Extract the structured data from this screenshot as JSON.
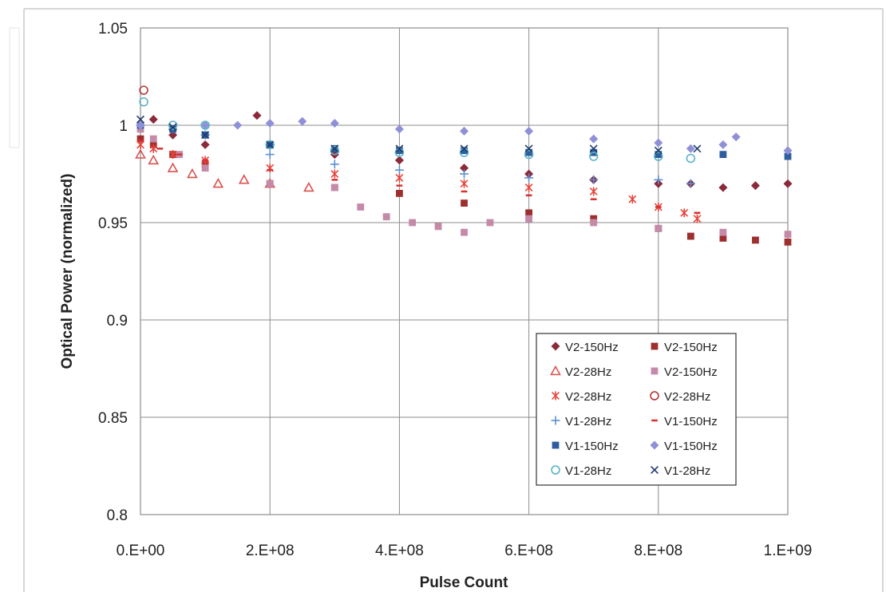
{
  "chart_data": {
    "type": "scatter",
    "xlabel": "Pulse Count",
    "ylabel": "Optical Power (normalized)",
    "xlim": [
      0,
      1000000000
    ],
    "ylim": [
      0.8,
      1.05
    ],
    "x_ticks": [
      0,
      200000000,
      400000000,
      600000000,
      800000000,
      1000000000
    ],
    "x_tick_labels": [
      "0.E+00",
      "2.E+08",
      "4.E+08",
      "6.E+08",
      "8.E+08",
      "1.E+09"
    ],
    "y_ticks": [
      0.8,
      0.85,
      0.9,
      0.95,
      1,
      1.05
    ],
    "y_tick_labels": [
      "0.8",
      "0.85",
      "0.9",
      "0.95",
      "1",
      "1.05"
    ],
    "grid": true,
    "legend_position": "bottom-right",
    "series": [
      {
        "name": "V2-150Hz",
        "marker": "diamond",
        "color": "#8b2a3a",
        "x": [
          0,
          20000000,
          50000000,
          100000000,
          180000000,
          300000000,
          400000000,
          500000000,
          600000000,
          700000000,
          800000000,
          850000000,
          900000000,
          950000000,
          1000000000
        ],
        "y": [
          1.0,
          1.003,
          0.995,
          0.99,
          1.005,
          0.985,
          0.982,
          0.978,
          0.975,
          0.972,
          0.97,
          0.97,
          0.968,
          0.969,
          0.97
        ]
      },
      {
        "name": "V2-150Hz",
        "marker": "square",
        "color": "#9e2f2f",
        "x": [
          0,
          20000000,
          50000000,
          100000000,
          200000000,
          300000000,
          400000000,
          500000000,
          600000000,
          700000000,
          800000000,
          850000000,
          900000000,
          950000000,
          1000000000
        ],
        "y": [
          0.993,
          0.99,
          0.985,
          0.98,
          0.97,
          0.968,
          0.965,
          0.96,
          0.955,
          0.952,
          0.947,
          0.943,
          0.942,
          0.941,
          0.94
        ]
      },
      {
        "name": "V2-28Hz",
        "marker": "triangle-open",
        "color": "#d9534f",
        "x": [
          0,
          20000000,
          50000000,
          80000000,
          120000000,
          160000000,
          200000000,
          260000000
        ],
        "y": [
          0.985,
          0.982,
          0.978,
          0.975,
          0.97,
          0.972,
          0.97,
          0.968
        ]
      },
      {
        "name": "V2-150Hz",
        "marker": "square",
        "color": "#c48aa8",
        "x": [
          0,
          20000000,
          60000000,
          100000000,
          200000000,
          300000000,
          340000000,
          380000000,
          420000000,
          460000000,
          500000000,
          540000000,
          600000000,
          700000000,
          800000000,
          900000000,
          1000000000
        ],
        "y": [
          0.998,
          0.993,
          0.985,
          0.978,
          0.97,
          0.968,
          0.958,
          0.953,
          0.95,
          0.948,
          0.945,
          0.95,
          0.952,
          0.95,
          0.947,
          0.945,
          0.944
        ]
      },
      {
        "name": "V2-28Hz",
        "marker": "asterisk",
        "color": "#e8433a",
        "x": [
          0,
          20000000,
          50000000,
          100000000,
          200000000,
          300000000,
          400000000,
          500000000,
          600000000,
          700000000,
          760000000,
          800000000,
          840000000,
          860000000
        ],
        "y": [
          0.99,
          0.988,
          0.985,
          0.982,
          0.978,
          0.975,
          0.973,
          0.97,
          0.968,
          0.966,
          0.962,
          0.958,
          0.955,
          0.952
        ]
      },
      {
        "name": "V2-28Hz",
        "marker": "circle-open",
        "color": "#b33a3a",
        "x": [
          5000000
        ],
        "y": [
          1.018
        ]
      },
      {
        "name": "V1-28Hz",
        "marker": "plus",
        "color": "#5b8fd1",
        "x": [
          0,
          50000000,
          100000000,
          200000000,
          300000000,
          400000000,
          500000000,
          600000000,
          700000000,
          800000000,
          850000000
        ],
        "y": [
          1.0,
          0.998,
          0.995,
          0.985,
          0.98,
          0.977,
          0.975,
          0.973,
          0.972,
          0.972,
          0.97
        ]
      },
      {
        "name": "V1-150Hz",
        "marker": "dash",
        "color": "#d93030",
        "x": [
          0,
          30000000,
          60000000,
          100000000,
          200000000,
          300000000,
          400000000,
          500000000,
          600000000,
          700000000,
          800000000,
          860000000
        ],
        "y": [
          0.992,
          0.988,
          0.985,
          0.982,
          0.977,
          0.972,
          0.969,
          0.966,
          0.964,
          0.962,
          0.958,
          0.955
        ]
      },
      {
        "name": "V1-150Hz",
        "marker": "square",
        "color": "#2e5e9e",
        "x": [
          0,
          50000000,
          100000000,
          200000000,
          300000000,
          400000000,
          500000000,
          600000000,
          700000000,
          800000000,
          900000000,
          1000000000
        ],
        "y": [
          1.0,
          0.998,
          0.995,
          0.99,
          0.988,
          0.987,
          0.987,
          0.986,
          0.986,
          0.985,
          0.985,
          0.984
        ]
      },
      {
        "name": "V1-150Hz",
        "marker": "diamond",
        "color": "#8f90d8",
        "x": [
          0,
          100000000,
          150000000,
          200000000,
          250000000,
          300000000,
          400000000,
          500000000,
          600000000,
          700000000,
          800000000,
          850000000,
          900000000,
          920000000,
          1000000000
        ],
        "y": [
          1.0,
          1.0,
          1.0,
          1.001,
          1.002,
          1.001,
          0.998,
          0.997,
          0.997,
          0.993,
          0.991,
          0.988,
          0.99,
          0.994,
          0.987
        ]
      },
      {
        "name": "V1-28Hz",
        "marker": "circle-open",
        "color": "#5bb4c8",
        "x": [
          5000000,
          50000000,
          100000000,
          200000000,
          300000000,
          400000000,
          500000000,
          600000000,
          700000000,
          800000000,
          850000000
        ],
        "y": [
          1.012,
          1.0,
          1.0,
          0.99,
          0.987,
          0.986,
          0.986,
          0.985,
          0.984,
          0.984,
          0.983
        ]
      },
      {
        "name": "V1-28Hz",
        "marker": "x",
        "color": "#1f3a6e",
        "x": [
          0,
          50000000,
          100000000,
          200000000,
          300000000,
          400000000,
          500000000,
          600000000,
          700000000,
          800000000,
          860000000
        ],
        "y": [
          1.003,
          0.999,
          0.995,
          0.99,
          0.988,
          0.988,
          0.988,
          0.988,
          0.988,
          0.987,
          0.988
        ]
      }
    ]
  }
}
